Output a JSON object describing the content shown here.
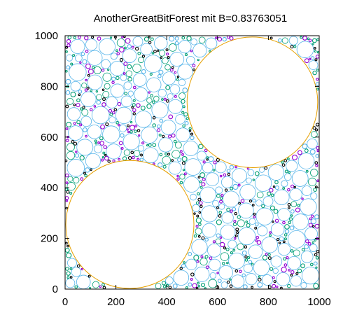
{
  "chart_data": {
    "type": "scatter",
    "title": "AnotherGreatBitForest mit B=0.83763051",
    "xlabel": "",
    "ylabel": "",
    "xlim": [
      0,
      1000
    ],
    "ylim": [
      0,
      1000
    ],
    "grid": false,
    "x_ticks": [
      "0",
      "200",
      "400",
      "600",
      "800",
      "1000"
    ],
    "y_ticks": [
      "0",
      "200",
      "400",
      "600",
      "800",
      "1000"
    ],
    "large_circles": [
      {
        "x": 737,
        "y": 737,
        "r": 257
      },
      {
        "x": 255,
        "y": 255,
        "r": 252
      }
    ],
    "packing_seed": 7,
    "colors": {
      "large_circle": "#e6a000",
      "packing": [
        "#56b4e9",
        "#009e73",
        "#9400d3",
        "#000000",
        "#009e73",
        "#56b4e9"
      ],
      "frame": "#000000"
    }
  }
}
